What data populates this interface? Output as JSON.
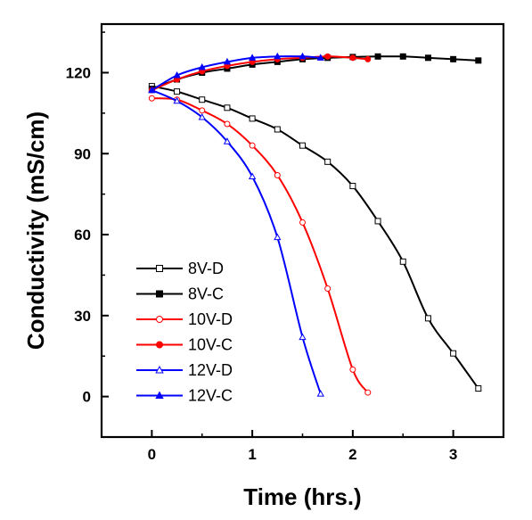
{
  "chart_data": {
    "type": "line",
    "title": "",
    "xlabel": "Time (hrs.)",
    "ylabel": "Conductivity (mS/cm)",
    "xlim": [
      -0.5,
      3.5
    ],
    "ylim": [
      -15,
      138
    ],
    "xticks": [
      0,
      1,
      2,
      3
    ],
    "yticks": [
      0,
      30,
      60,
      90,
      120
    ],
    "grid": false,
    "legend_position": "bottom-left",
    "series": [
      {
        "name": "8V-D",
        "color": "#000000",
        "marker": "square",
        "filled": false,
        "x": [
          0,
          0.25,
          0.5,
          0.75,
          1.0,
          1.25,
          1.5,
          1.75,
          2.0,
          2.25,
          2.5,
          2.75,
          3.0,
          3.25
        ],
        "y": [
          115,
          113,
          110,
          107,
          103,
          99,
          93,
          87,
          78,
          65,
          50,
          29,
          16,
          3
        ]
      },
      {
        "name": "8V-C",
        "color": "#000000",
        "marker": "square",
        "filled": true,
        "x": [
          0,
          0.25,
          0.5,
          0.75,
          1.0,
          1.25,
          1.5,
          1.75,
          2.0,
          2.25,
          2.5,
          2.75,
          3.0,
          3.25
        ],
        "y": [
          114,
          117.5,
          120,
          121.5,
          123,
          124,
          125,
          125.5,
          125.8,
          126,
          126,
          125.5,
          125,
          124.5
        ]
      },
      {
        "name": "10V-D",
        "color": "#ff0000",
        "marker": "circle",
        "filled": false,
        "x": [
          0,
          0.25,
          0.5,
          0.75,
          1.0,
          1.25,
          1.5,
          1.75,
          2.0,
          2.15
        ],
        "y": [
          110.5,
          110,
          106,
          101,
          93,
          82,
          64.5,
          40,
          10,
          1.5
        ]
      },
      {
        "name": "10V-C",
        "color": "#ff0000",
        "marker": "circle",
        "filled": true,
        "x": [
          0,
          0.25,
          0.5,
          0.75,
          1.0,
          1.25,
          1.5,
          1.75,
          2.0,
          2.15
        ],
        "y": [
          113.5,
          117.5,
          120.5,
          122.5,
          124,
          125,
          125.5,
          126,
          125.5,
          125
        ]
      },
      {
        "name": "12V-D",
        "color": "#0000ff",
        "marker": "triangle",
        "filled": false,
        "x": [
          0,
          0.25,
          0.5,
          0.75,
          1.0,
          1.25,
          1.5,
          1.68
        ],
        "y": [
          113.5,
          109.5,
          103.5,
          94.5,
          81.5,
          59,
          22,
          1
        ]
      },
      {
        "name": "12V-C",
        "color": "#0000ff",
        "marker": "triangle",
        "filled": true,
        "x": [
          0,
          0.25,
          0.5,
          0.75,
          1.0,
          1.25,
          1.5,
          1.68
        ],
        "y": [
          113.5,
          119,
          122,
          124,
          125.5,
          126,
          126,
          125.5
        ]
      }
    ]
  }
}
